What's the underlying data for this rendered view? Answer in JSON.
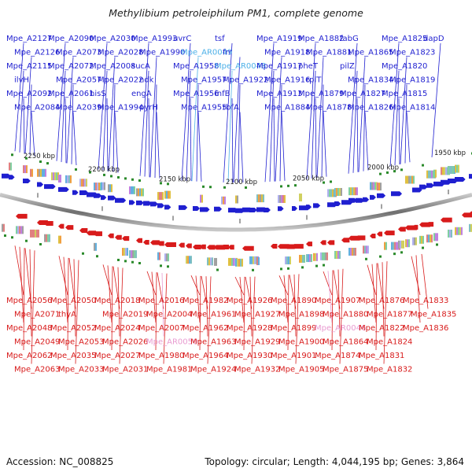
{
  "title": "Methylibium petroleiphilum PM1, complete genome",
  "footer": {
    "accession": "Accession: NC_008825",
    "topology": "Topology: circular; Length: 4,044,195 bp; Genes: 3,864"
  },
  "colors": {
    "forward": "#1f1fd0",
    "reverse": "#d81b1b",
    "rna": "#4cb0e8",
    "rna_reverse": "#e89ad0",
    "backbone": "#8a8a8a",
    "marker": "#2a8a2a"
  },
  "scale_ticks": [
    "2250 kbp",
    "2200 kbp",
    "2150 kbp",
    "2100 kbp",
    "2050 kbp",
    "2000 kbp",
    "1950 kbp"
  ],
  "genes_top": [
    "Mpe_A2127",
    "Mpe_A2126",
    "Mpe_A2115",
    "ilvH",
    "Mpe_A2092",
    "Mpe_A2084",
    "Mpe_A2090",
    "Mpe_A2073",
    "Mpe_A2072",
    "Mpe_A2057",
    "Mpe_A2061",
    "Mpe_A2039",
    "Mpe_A2030",
    "Mpe_A2028",
    "Mpe_A2008",
    "Mpe_A2022",
    "hisS",
    "Mpe_A1994",
    "Mpe_A1993",
    "Mpe_A1990",
    "sucA",
    "ndk",
    "engA",
    "pyrH",
    "uvrC",
    "Mpe_AR0049",
    "Mpe_A1958",
    "Mpe_A1957",
    "Mpe_A1956",
    "Mpe_A1955",
    "tsf",
    "frr",
    "Mpe_AR0048",
    "Mpe_A1922",
    "infB",
    "rbfA",
    "Mpe_A1919",
    "Mpe_A1918",
    "Mpe_A1917",
    "Mpe_A1916",
    "Mpe_A1913",
    "Mpe_A1884",
    "Mpe_A1882",
    "Mpe_A1881",
    "pheT",
    "rplT",
    "Mpe_A1879",
    "Mpe_A1878",
    "fabG",
    "Mpe_A1865",
    "pilZ",
    "Mpe_A1834",
    "Mpe_A1827",
    "Mpe_A1826",
    "Mpe_A1825",
    "Mpe_A1823",
    "Mpe_A1820",
    "Mpe_A1819",
    "Mpe_A1815",
    "Mpe_A1814",
    "dapD"
  ],
  "genes_bottom": [
    "Mpe_A2056",
    "Mpe_A2071",
    "Mpe_A2048",
    "Mpe_A2049",
    "Mpe_A2062",
    "Mpe_A2063",
    "Mpe_A2050",
    "thyA",
    "Mpe_A2052",
    "Mpe_A2053",
    "Mpe_A2035",
    "Mpe_A2033",
    "Mpe_A2018",
    "Mpe_A2019",
    "Mpe_A2024",
    "Mpe_A2026",
    "Mpe_A2027",
    "Mpe_A2031",
    "Mpe_A2016",
    "Mpe_A2004",
    "Mpe_A2007",
    "Mpe_AR0050",
    "Mpe_A1980",
    "Mpe_A1981",
    "Mpe_A1982",
    "Mpe_A1961",
    "Mpe_A1962",
    "Mpe_A1963",
    "Mpe_A1964",
    "Mpe_A1924",
    "Mpe_A1926",
    "Mpe_A1927",
    "Mpe_A1928",
    "Mpe_A1929",
    "Mpe_A1930",
    "Mpe_A1932",
    "Mpe_A1890",
    "Mpe_A1898",
    "Mpe_A1899",
    "Mpe_A1900",
    "Mpe_A1901",
    "Mpe_A1905",
    "Mpe_A1907",
    "Mpe_A1880",
    "Mpe_AR0046",
    "Mpe_A1864",
    "Mpe_A1874",
    "Mpe_A1875",
    "Mpe_A1876",
    "Mpe_A1877",
    "Mpe_A1822",
    "Mpe_A1824",
    "Mpe_A1831",
    "Mpe_A1832",
    "Mpe_A1833",
    "Mpe_A1835",
    "Mpe_A1836"
  ]
}
